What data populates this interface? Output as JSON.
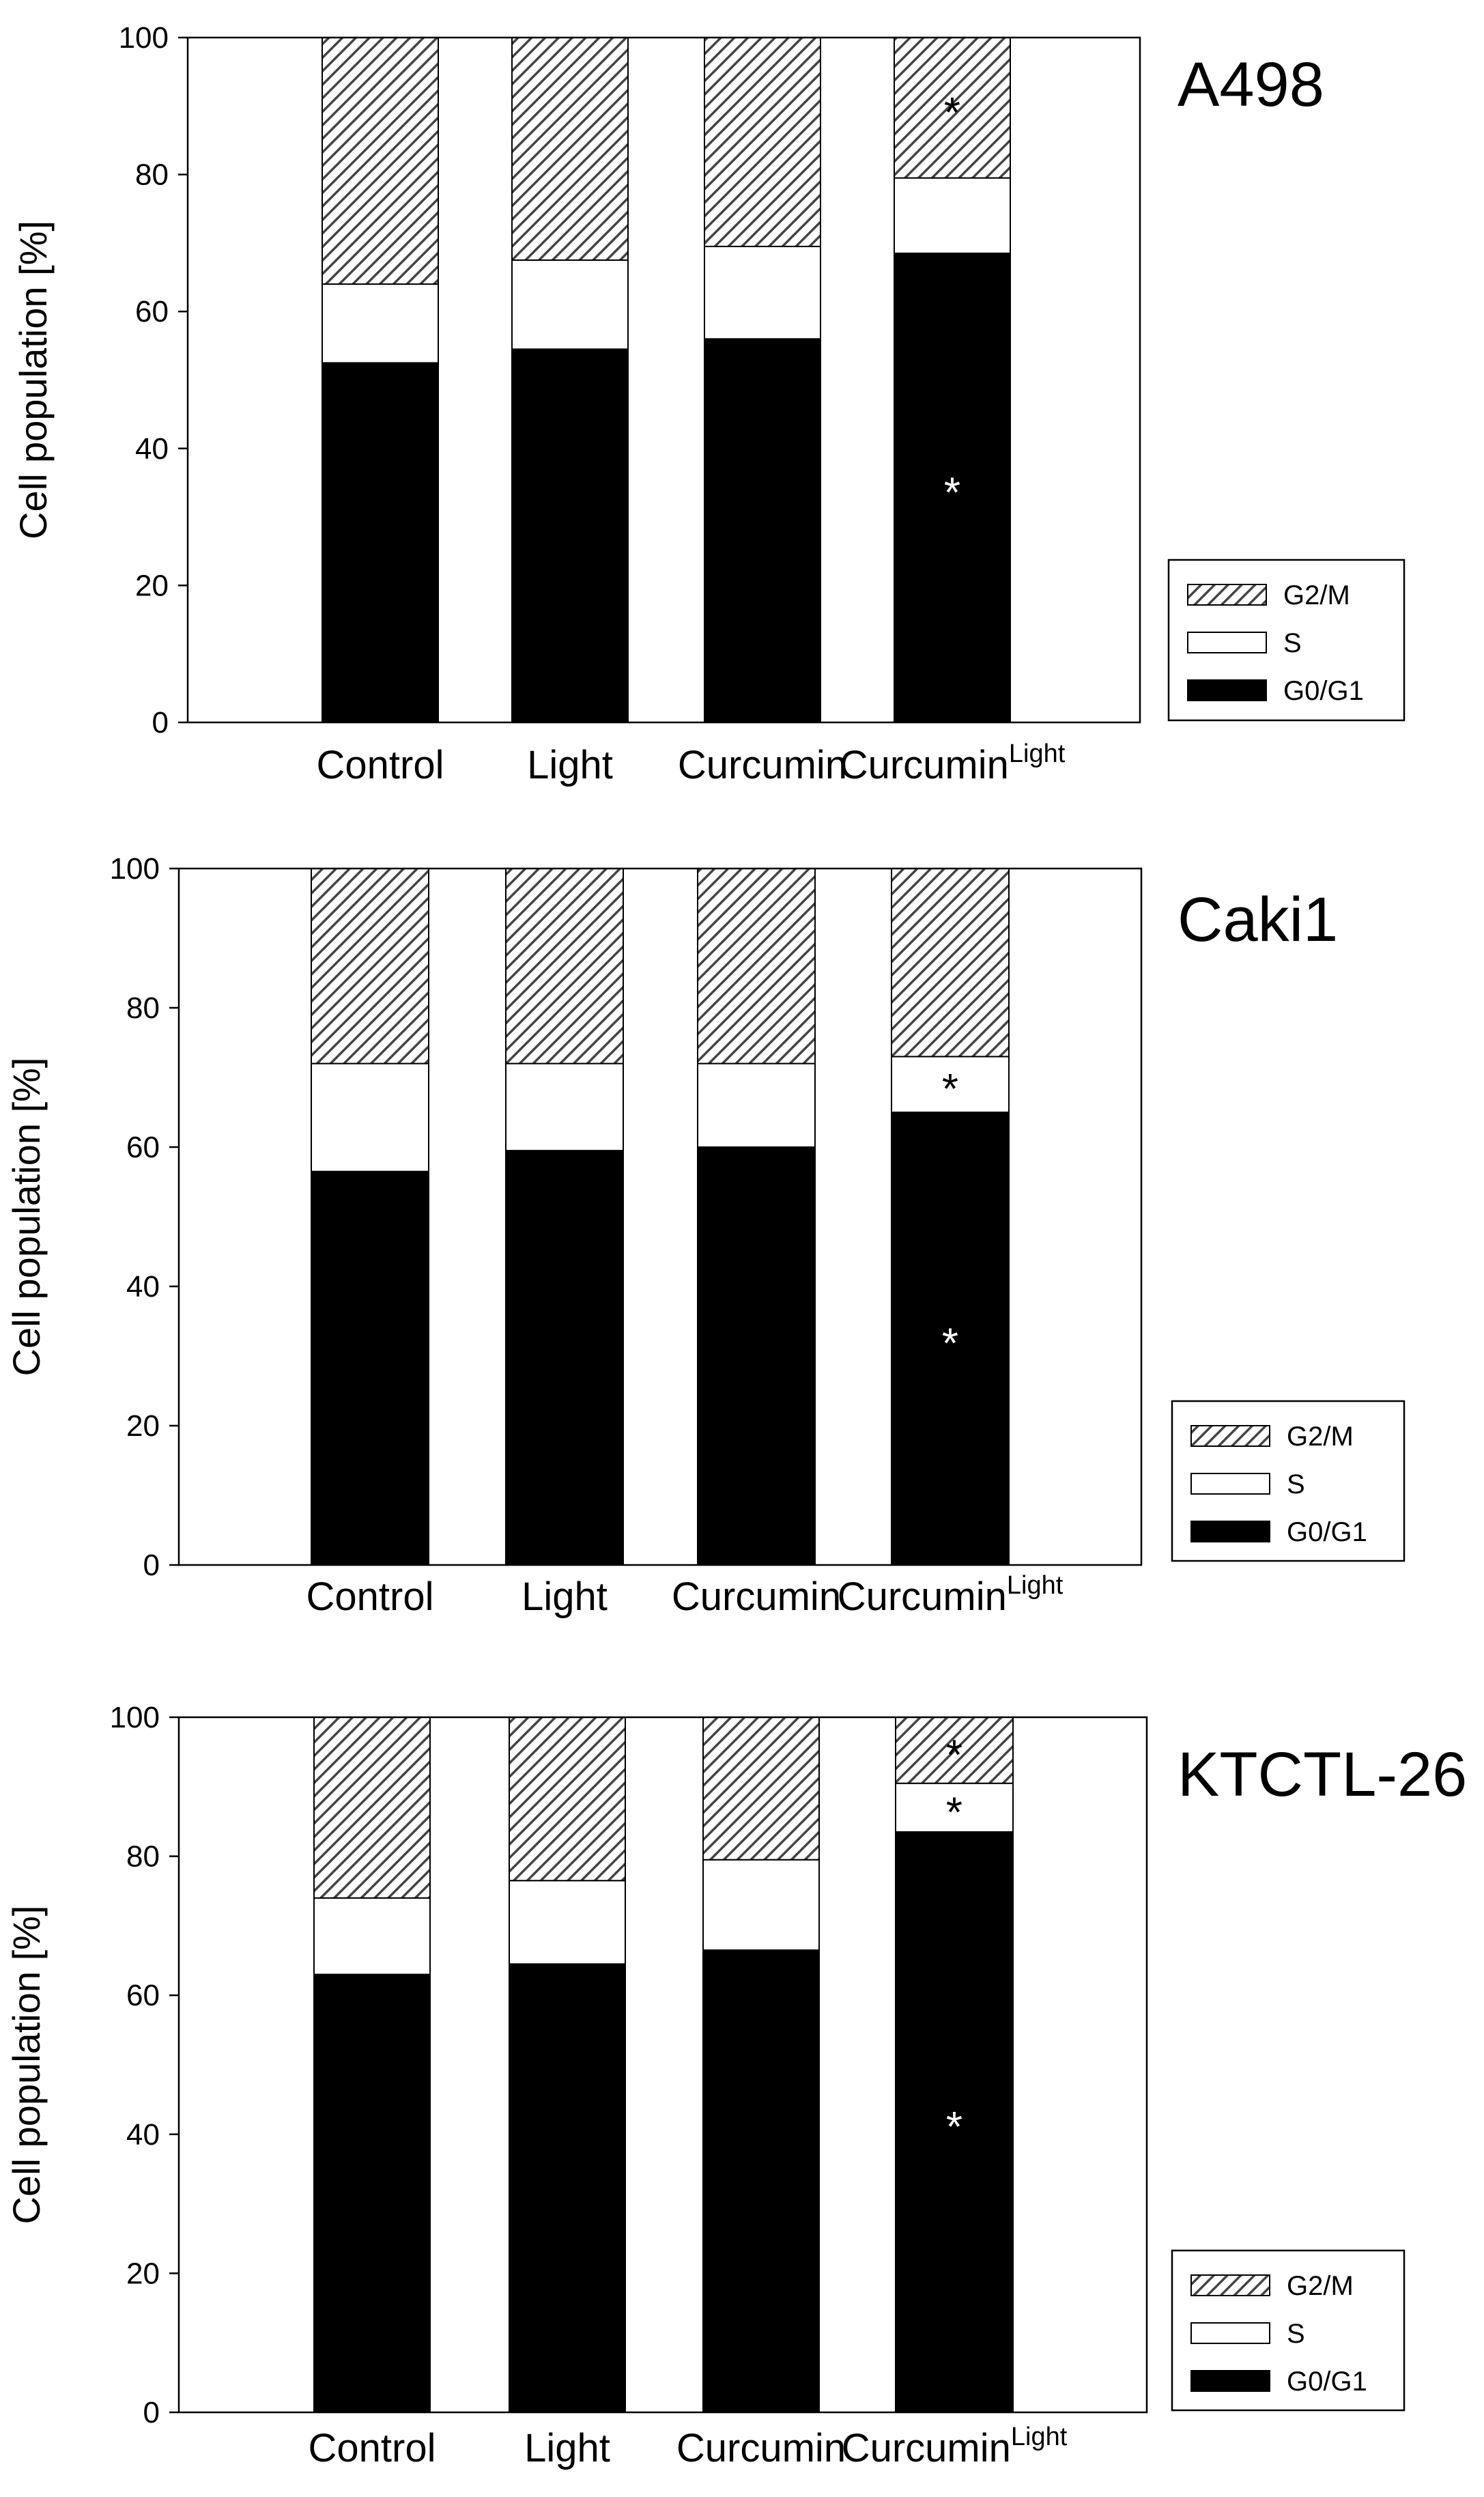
{
  "figure": {
    "legend": [
      {
        "key": "g2m",
        "label": "G2/M"
      },
      {
        "key": "s",
        "label": "S"
      },
      {
        "key": "g0g1",
        "label": "G0/G1"
      }
    ],
    "colors": {
      "g0g1": "#000000",
      "s": "#ffffff",
      "g2m_bg": "#ffffff",
      "g2m_hatch": "#444444",
      "axis": "#000000",
      "star_on_dark": "#ffffff",
      "star_on_light": "#000000"
    },
    "categories": [
      {
        "main": "Control",
        "sup": ""
      },
      {
        "main": "Light",
        "sup": ""
      },
      {
        "main": "Curcumin",
        "sup": ""
      },
      {
        "main": "Curcumin",
        "sup": "Light"
      }
    ]
  },
  "chart_data": [
    {
      "type": "bar",
      "stacked": true,
      "title": "A498",
      "ylabel": "Cell population [%]",
      "xlabel": "",
      "ylim": [
        0,
        100
      ],
      "yticks": [
        0,
        20,
        40,
        60,
        80,
        100
      ],
      "categories": [
        "Control",
        "Light",
        "Curcumin",
        "Curcumin Light"
      ],
      "series": [
        {
          "name": "G0/G1",
          "values": [
            52.5,
            54.5,
            56,
            68.5
          ]
        },
        {
          "name": "S",
          "values": [
            11.5,
            13,
            13.5,
            11
          ]
        },
        {
          "name": "G2/M",
          "values": [
            36,
            32.5,
            30.5,
            20.5
          ]
        }
      ],
      "annotations": [
        {
          "category_index": 3,
          "series": "G0/G1",
          "text": "*"
        },
        {
          "category_index": 3,
          "series": "G2/M",
          "text": "*"
        }
      ]
    },
    {
      "type": "bar",
      "stacked": true,
      "title": "Caki1",
      "ylabel": "Cell population [%]",
      "xlabel": "",
      "ylim": [
        0,
        100
      ],
      "yticks": [
        0,
        20,
        40,
        60,
        80,
        100
      ],
      "categories": [
        "Control",
        "Light",
        "Curcumin",
        "Curcumin Light"
      ],
      "series": [
        {
          "name": "G0/G1",
          "values": [
            56.5,
            59.5,
            60,
            65
          ]
        },
        {
          "name": "S",
          "values": [
            15.5,
            12.5,
            12,
            8
          ]
        },
        {
          "name": "G2/M",
          "values": [
            28,
            28,
            28,
            27
          ]
        }
      ],
      "annotations": [
        {
          "category_index": 3,
          "series": "G0/G1",
          "text": "*"
        },
        {
          "category_index": 3,
          "series": "S",
          "text": "*"
        }
      ]
    },
    {
      "type": "bar",
      "stacked": true,
      "title": "KTCTL-26",
      "ylabel": "Cell population [%]",
      "xlabel": "",
      "ylim": [
        0,
        100
      ],
      "yticks": [
        0,
        20,
        40,
        60,
        80,
        100
      ],
      "categories": [
        "Control",
        "Light",
        "Curcumin",
        "Curcumin Light"
      ],
      "series": [
        {
          "name": "G0/G1",
          "values": [
            63,
            64.5,
            66.5,
            83.5
          ]
        },
        {
          "name": "S",
          "values": [
            11,
            12,
            13,
            7
          ]
        },
        {
          "name": "G2/M",
          "values": [
            26,
            23.5,
            20.5,
            9.5
          ]
        }
      ],
      "annotations": [
        {
          "category_index": 3,
          "series": "G0/G1",
          "text": "*"
        },
        {
          "category_index": 3,
          "series": "S",
          "text": "*"
        },
        {
          "category_index": 3,
          "series": "G2/M",
          "text": "*"
        }
      ]
    }
  ]
}
